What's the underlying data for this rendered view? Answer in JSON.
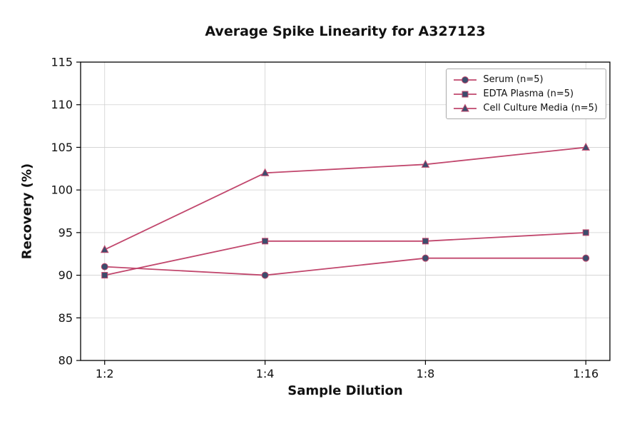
{
  "chart_data": {
    "type": "line",
    "title": "Average Spike Linearity for A327123",
    "xlabel": "Sample Dilution",
    "ylabel": "Recovery (%)",
    "categories": [
      "1:2",
      "1:4",
      "1:8",
      "1:16"
    ],
    "series": [
      {
        "name": "Serum (n=5)",
        "marker": "circle",
        "values": [
          91,
          90,
          92,
          92
        ]
      },
      {
        "name": "EDTA Plasma (n=5)",
        "marker": "square",
        "values": [
          90,
          94,
          94,
          95
        ]
      },
      {
        "name": "Cell Culture Media (n=5)",
        "marker": "triangle",
        "values": [
          93,
          102,
          103,
          105
        ]
      }
    ],
    "ylim": [
      80,
      115
    ],
    "yticks": [
      80,
      85,
      90,
      95,
      100,
      105,
      110,
      115
    ],
    "grid": true,
    "legend_position": "top-right",
    "colors": {
      "line": "#c1476d",
      "marker_fill": "#3d4d6d",
      "grid": "#d0d0d0",
      "axis": "#000000",
      "text": "#111111",
      "background": "#ffffff"
    }
  }
}
